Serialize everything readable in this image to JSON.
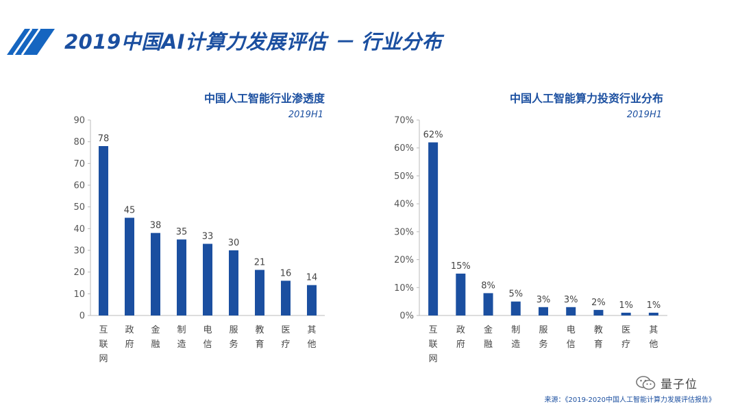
{
  "header": {
    "title": "2019中国AI计算力发展评估 － 行业分布",
    "stripe_color": "#1565c0"
  },
  "colors": {
    "bar": "#1b4fa0",
    "accent": "#1b4fa0"
  },
  "chart_data": [
    {
      "type": "bar",
      "title": "中国人工智能行业渗透度",
      "subtitle": "2019H1",
      "categories": [
        "互联网",
        "政府",
        "金融",
        "制造",
        "电信",
        "服务",
        "教育",
        "医疗",
        "其他"
      ],
      "values": [
        78,
        45,
        38,
        35,
        33,
        30,
        21,
        16,
        14
      ],
      "data_labels": [
        "78",
        "45",
        "38",
        "35",
        "33",
        "30",
        "21",
        "16",
        "14"
      ],
      "ylim": [
        0,
        90
      ],
      "yticks": [
        "0",
        "10",
        "20",
        "30",
        "40",
        "50",
        "60",
        "70",
        "80",
        "90"
      ],
      "grid": false,
      "legend": "none"
    },
    {
      "type": "bar",
      "title": "中国人工智能算力投资行业分布",
      "subtitle": "2019H1",
      "categories": [
        "互联网",
        "政府",
        "金融",
        "制造",
        "服务",
        "电信",
        "教育",
        "医疗",
        "其他"
      ],
      "values": [
        62,
        15,
        8,
        5,
        3,
        3,
        2,
        1,
        1
      ],
      "data_labels": [
        "62%",
        "15%",
        "8%",
        "5%",
        "3%",
        "3%",
        "2%",
        "1%",
        "1%"
      ],
      "ylim": [
        0,
        70
      ],
      "yticks": [
        "0%",
        "10%",
        "20%",
        "30%",
        "40%",
        "50%",
        "60%",
        "70%"
      ],
      "grid": false,
      "legend": "none"
    }
  ],
  "footer": {
    "source": "来源：《2019-2020中国人工智能计算力发展评估报告》",
    "brand": "量子位",
    "brand_icon": "wechat-icon"
  }
}
